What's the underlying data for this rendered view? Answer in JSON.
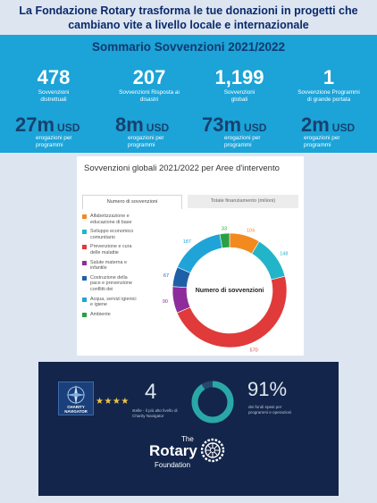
{
  "headline": {
    "line1": "La Fondazione Rotary trasforma le tue donazioni in progetti che",
    "line2": "cambiano vite a livello locale e internazionale"
  },
  "summary": {
    "title": "Sommario Sovvenzioni 2021/2022",
    "stats": [
      {
        "value": "478",
        "label_l1": "Sovvenzioni",
        "label_l2": "distrettuali"
      },
      {
        "value": "207",
        "label_l1": "Sovvenzioni Risposta ai",
        "label_l2": "disastri"
      },
      {
        "value": "1,199",
        "label_l1": "Sovvenzioni",
        "label_l2": "globali"
      },
      {
        "value": "1",
        "label_l1": "Sovvenzione Programmi",
        "label_l2": "di grande portata"
      }
    ],
    "money": [
      {
        "value": "27m",
        "currency": "USD",
        "label_l1": "erogazioni per",
        "label_l2": "programmi"
      },
      {
        "value": "8m",
        "currency": "USD",
        "label_l1": "erogazioni per",
        "label_l2": "programmi"
      },
      {
        "value": "73m",
        "currency": "USD",
        "label_l1": "erogazioni per",
        "label_l2": "programmi"
      },
      {
        "value": "2m",
        "currency": "USD",
        "label_l1": "erogazioni per",
        "label_l2": "programmi"
      }
    ]
  },
  "global_grants": {
    "title": "Sovvenzioni globali 2021/2022 per Aree d'intervento",
    "tabs": [
      "Numero di sovvenzioni",
      "Totale finanziamento (milioni)"
    ],
    "center_label": "Numero di sovvenzioni",
    "legend": [
      {
        "l1": "Alfabetizzazione e",
        "l2": "educazione di base",
        "l3": "",
        "color": "#f28a1f"
      },
      {
        "l1": "Sviluppo economico",
        "l2": "comunitario",
        "l3": "",
        "color": "#22b5c9"
      },
      {
        "l1": "Prevenzione e cura",
        "l2": "delle malattie",
        "l3": "",
        "color": "#e03a3a"
      },
      {
        "l1": "Salute materna e",
        "l2": "infantile",
        "l3": "",
        "color": "#8e2c9c"
      },
      {
        "l1": "Costruzione della",
        "l2": "pace e prevenzione",
        "l3": "conflitti dei",
        "color": "#1f5fa8"
      },
      {
        "l1": "Acqua, servizi igienici",
        "l2": "e igiene",
        "l3": "",
        "color": "#20a4d8"
      },
      {
        "l1": "Ambiente",
        "l2": "",
        "l3": "",
        "color": "#2aa045"
      }
    ]
  },
  "chart_data": {
    "type": "pie",
    "title": "Sovvenzioni globali 2021/2022 per Aree d'intervento",
    "center_label": "Numero di sovvenzioni",
    "categories": [
      "Alfabetizzazione e educazione di base",
      "Sviluppo economico comunitario",
      "Prevenzione e cura delle malattie",
      "Salute materna e infantile",
      "Costruzione della pace e prevenzione conflitti dei",
      "Acqua, servizi igienici e igiene",
      "Ambiente"
    ],
    "values": [
      104,
      148,
      570,
      90,
      67,
      187,
      33
    ],
    "labels": [
      "104",
      "148",
      "570",
      "90",
      "67",
      "187",
      "33"
    ],
    "colors": [
      "#f28a1f",
      "#22b5c9",
      "#e03a3a",
      "#8e2c9c",
      "#1f5fa8",
      "#20a4d8",
      "#2aa045"
    ]
  },
  "foundation": {
    "charity_navigator": "CHARITY NAVIGATOR",
    "stars": "★★★★",
    "rating_value": "4",
    "rating_text_l1": "stelle - il più alto livello di",
    "rating_text_l2": "Charity Navigator",
    "percent_value": "91%",
    "percent_fraction": 0.91,
    "percent_text_l1": "dei fondi spesi per",
    "percent_text_l2": "programmi e operazioni",
    "logo_the": "The",
    "logo_rotary": "Rotary",
    "logo_foundation": "Foundation",
    "ring_color": "#2aa7a7"
  }
}
